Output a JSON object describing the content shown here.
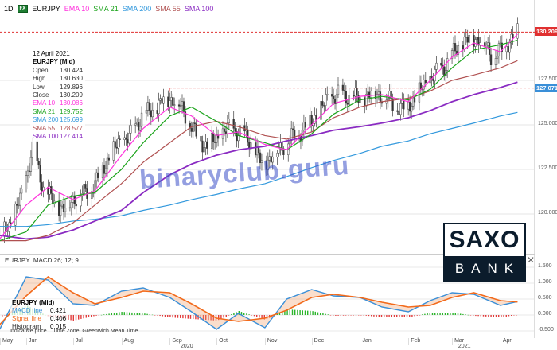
{
  "header": {
    "timeframe": "1D",
    "badge": "FX",
    "symbol": "EURJPY",
    "indicators": [
      {
        "label": "EMA 10",
        "color": "#ff33dd"
      },
      {
        "label": "SMA 21",
        "color": "#1aa31a"
      },
      {
        "label": "SMA 200",
        "color": "#3399dd"
      },
      {
        "label": "SMA 55",
        "color": "#b05050"
      },
      {
        "label": "SMA 100",
        "color": "#8a2bc2"
      }
    ]
  },
  "legend": {
    "date": "12 April 2021",
    "title": "EURJPY (Mid)",
    "rows": [
      {
        "k": "Open",
        "v": "130.424",
        "color": "#333"
      },
      {
        "k": "High",
        "v": "130.630",
        "color": "#333"
      },
      {
        "k": "Low",
        "v": "129.896",
        "color": "#333"
      },
      {
        "k": "Close",
        "v": "130.209",
        "color": "#333"
      },
      {
        "k": "EMA 10",
        "v": "130.086",
        "color": "#ff33dd"
      },
      {
        "k": "SMA 21",
        "v": "129.752",
        "color": "#1aa31a"
      },
      {
        "k": "SMA 200",
        "v": "125.699",
        "color": "#3399dd"
      },
      {
        "k": "SMA 55",
        "v": "128.577",
        "color": "#b05050"
      },
      {
        "k": "SMA 100",
        "v": "127.414",
        "color": "#8a2bc2"
      }
    ]
  },
  "macd_legend": {
    "pane_title": "EURJPY  MACD 26; 12; 9",
    "title": "EURJPY (Mid)",
    "rows": [
      {
        "k": "MACD line",
        "v": "0.421",
        "color": "#3a8fd8"
      },
      {
        "k": "Signal line",
        "v": "0.406",
        "color": "#f26a1b"
      },
      {
        "k": "Histogram",
        "v": "0.015",
        "color": "#333"
      }
    ]
  },
  "footer": {
    "note": "Indicative price    Time Zone: Greenwich Mean Time"
  },
  "watermark": "binaryclub.guru",
  "logo": {
    "top": "SAXO",
    "bottom": "BANK"
  },
  "chart_data": [
    {
      "type": "candlestick",
      "symbol": "EURJPY",
      "ylim": [
        117.8,
        131.0
      ],
      "yticks": [
        "120.000",
        "122.500",
        "125.000",
        "127.500"
      ],
      "price_tags": [
        {
          "label": "130.209",
          "value": 130.209,
          "color": "#e03030"
        },
        {
          "label": "127.071",
          "value": 127.071,
          "color": "#3a8fd8"
        }
      ],
      "xticks": [
        {
          "label": "May",
          "date": "2020-05-01"
        },
        {
          "label": "Jun",
          "date": "2020-06-01"
        },
        {
          "label": "Jul",
          "date": "2020-07-01"
        },
        {
          "label": "Aug",
          "date": "2020-08-01"
        },
        {
          "label": "Sep",
          "date": "2020-09-01"
        },
        {
          "label": "Oct",
          "date": "2020-10-01"
        },
        {
          "label": "Nov",
          "date": "2020-11-01"
        },
        {
          "label": "Dec",
          "date": "2020-12-01"
        },
        {
          "label": "Jan",
          "date": "2021-01-01"
        },
        {
          "label": "Feb",
          "date": "2021-02-01"
        },
        {
          "label": "Mar",
          "date": "2021-03-01"
        },
        {
          "label": "Apr",
          "date": "2021-04-01"
        }
      ],
      "years": [
        {
          "label": "2020",
          "date": "2020-09-08"
        },
        {
          "label": "2021",
          "date": "2021-03-05"
        }
      ],
      "close_dates": [
        "2020-05-15",
        "2020-05-22",
        "2020-05-29",
        "2020-06-05",
        "2020-06-12",
        "2020-06-19",
        "2020-06-26",
        "2020-07-03",
        "2020-07-10",
        "2020-07-17",
        "2020-07-24",
        "2020-07-31",
        "2020-08-07",
        "2020-08-14",
        "2020-08-21",
        "2020-08-28",
        "2020-09-04",
        "2020-09-11",
        "2020-09-18",
        "2020-09-25",
        "2020-10-02",
        "2020-10-09",
        "2020-10-16",
        "2020-10-23",
        "2020-10-30",
        "2020-11-06",
        "2020-11-13",
        "2020-11-20",
        "2020-11-27",
        "2020-12-04",
        "2020-12-11",
        "2020-12-18",
        "2020-12-25",
        "2021-01-01",
        "2021-01-08",
        "2021-01-15",
        "2021-01-22",
        "2021-01-29",
        "2021-02-05",
        "2021-02-12",
        "2021-02-19",
        "2021-02-26",
        "2021-03-05",
        "2021-03-12",
        "2021-03-19",
        "2021-03-26",
        "2021-04-02",
        "2021-04-09",
        "2021-04-12"
      ],
      "closes": [
        118.8,
        119.5,
        121.0,
        123.6,
        121.5,
        120.6,
        120.3,
        121.0,
        121.2,
        122.0,
        123.2,
        124.0,
        124.4,
        125.5,
        125.8,
        126.4,
        126.5,
        125.6,
        124.4,
        123.8,
        124.3,
        124.8,
        124.6,
        124.0,
        122.8,
        123.3,
        123.9,
        124.4,
        124.9,
        125.5,
        126.4,
        126.7,
        126.6,
        126.4,
        126.8,
        126.7,
        126.2,
        125.9,
        126.5,
        127.3,
        127.9,
        128.5,
        129.4,
        129.8,
        129.9,
        128.9,
        129.2,
        130.0,
        130.209
      ],
      "ma_dates": [
        "2020-05-15",
        "2020-06-01",
        "2020-06-15",
        "2020-07-01",
        "2020-07-15",
        "2020-08-01",
        "2020-08-15",
        "2020-09-01",
        "2020-09-15",
        "2020-10-01",
        "2020-10-15",
        "2020-11-01",
        "2020-11-15",
        "2020-12-01",
        "2020-12-15",
        "2021-01-01",
        "2021-01-15",
        "2021-02-01",
        "2021-02-15",
        "2021-03-01",
        "2021-03-15",
        "2021-04-01",
        "2021-04-12"
      ],
      "series": [
        {
          "name": "SMA 200",
          "color": "#3399dd",
          "values": [
            119.3,
            119.3,
            119.4,
            119.6,
            119.7,
            119.9,
            120.2,
            120.5,
            120.8,
            121.1,
            121.4,
            121.7,
            122.1,
            122.6,
            123.0,
            123.4,
            123.8,
            124.1,
            124.5,
            124.8,
            125.1,
            125.5,
            125.7
          ]
        },
        {
          "name": "SMA 100",
          "color": "#8a2bc2",
          "values": [
            118.8,
            118.6,
            118.7,
            119.1,
            119.6,
            120.2,
            121.2,
            122.2,
            122.8,
            123.3,
            123.6,
            123.8,
            124.1,
            124.4,
            124.7,
            124.9,
            125.1,
            125.4,
            125.8,
            126.3,
            126.7,
            127.1,
            127.4
          ]
        },
        {
          "name": "SMA 55",
          "color": "#b05050",
          "values": [
            118.5,
            118.5,
            118.8,
            119.5,
            120.5,
            121.7,
            122.9,
            124.0,
            124.9,
            125.2,
            124.9,
            124.4,
            124.2,
            124.6,
            125.4,
            126.0,
            126.3,
            126.5,
            126.9,
            127.5,
            127.8,
            128.2,
            128.6
          ]
        },
        {
          "name": "SMA 21",
          "color": "#1aa31a",
          "values": [
            118.5,
            119.0,
            120.5,
            121.0,
            121.2,
            122.5,
            124.0,
            125.5,
            126.0,
            125.2,
            124.4,
            124.0,
            123.6,
            124.5,
            125.6,
            126.4,
            126.6,
            126.4,
            127.0,
            128.2,
            129.2,
            129.5,
            129.75
          ]
        },
        {
          "name": "EMA 10",
          "color": "#ff33dd",
          "values": [
            118.6,
            120.5,
            121.5,
            120.8,
            121.3,
            123.3,
            124.8,
            126.0,
            125.5,
            124.4,
            124.6,
            123.9,
            123.6,
            125.0,
            126.2,
            126.6,
            126.7,
            126.3,
            127.5,
            128.8,
            129.6,
            129.1,
            130.09
          ]
        }
      ]
    },
    {
      "type": "macd",
      "ylim": [
        -0.75,
        1.75
      ],
      "yticks": [
        "1.500",
        "1.000",
        "0.500",
        "0.000",
        "-0.500"
      ],
      "macd": {
        "name": "MACD line",
        "color": "#3a8fd8",
        "values": [
          -0.45,
          1.2,
          1.1,
          0.35,
          0.3,
          0.75,
          0.85,
          0.55,
          0.1,
          -0.45,
          0.05,
          -0.4,
          0.5,
          0.8,
          0.6,
          0.55,
          0.25,
          0.1,
          0.45,
          0.7,
          0.65,
          0.3,
          0.421
        ]
      },
      "signal": {
        "name": "Signal line",
        "color": "#f26a1b",
        "values": [
          -0.3,
          0.6,
          1.2,
          0.7,
          0.35,
          0.55,
          0.75,
          0.7,
          0.35,
          -0.1,
          -0.2,
          -0.1,
          0.15,
          0.55,
          0.65,
          0.55,
          0.4,
          0.25,
          0.3,
          0.55,
          0.7,
          0.45,
          0.406
        ]
      }
    }
  ]
}
